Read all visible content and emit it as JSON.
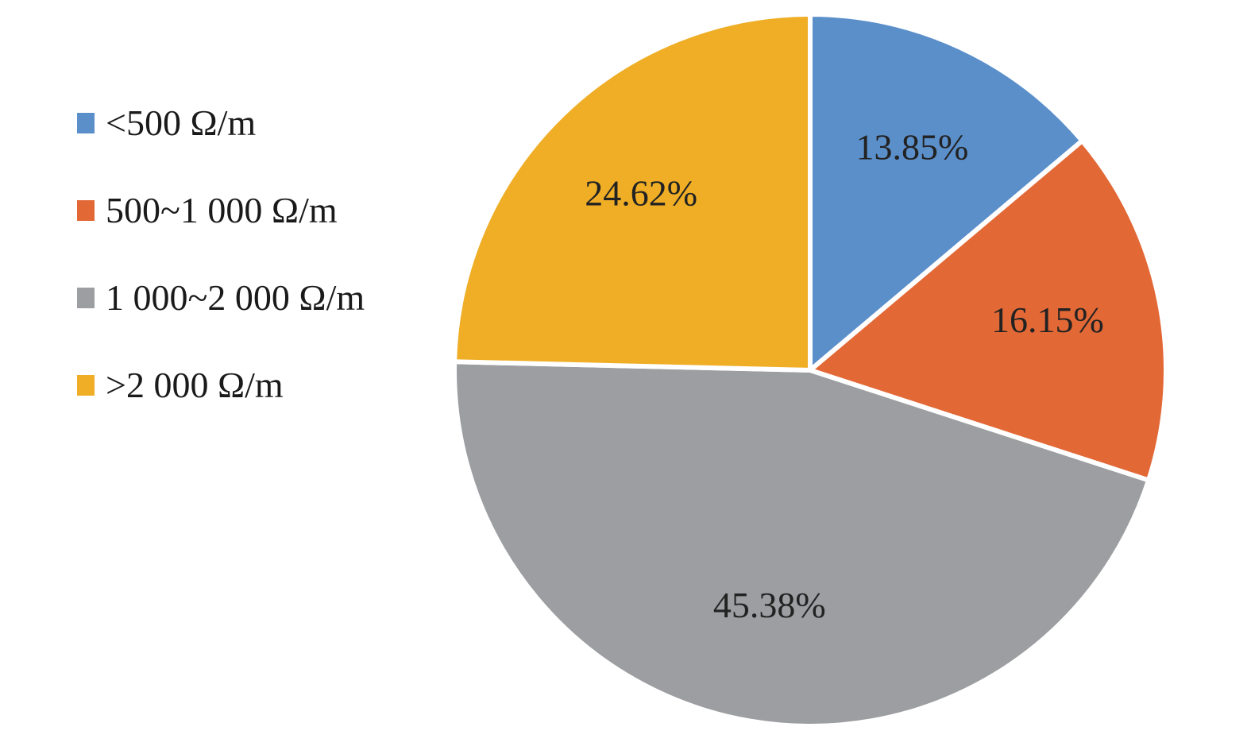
{
  "chart_data": {
    "type": "pie",
    "title": "",
    "categories": [
      "<500 Ω/m",
      "500~1 000 Ω/m",
      "1 000~2 000 Ω/m",
      ">2 000 Ω/m"
    ],
    "values": [
      13.85,
      16.15,
      45.38,
      24.62
    ],
    "data_labels": [
      "13.85%",
      "16.15%",
      "45.38%",
      "24.62%"
    ],
    "colors": [
      "#5b8fca",
      "#e26836",
      "#9c9ea1",
      "#efae26"
    ],
    "start_angle": "12 o'clock",
    "direction": "clockwise",
    "legend_position": "left"
  }
}
